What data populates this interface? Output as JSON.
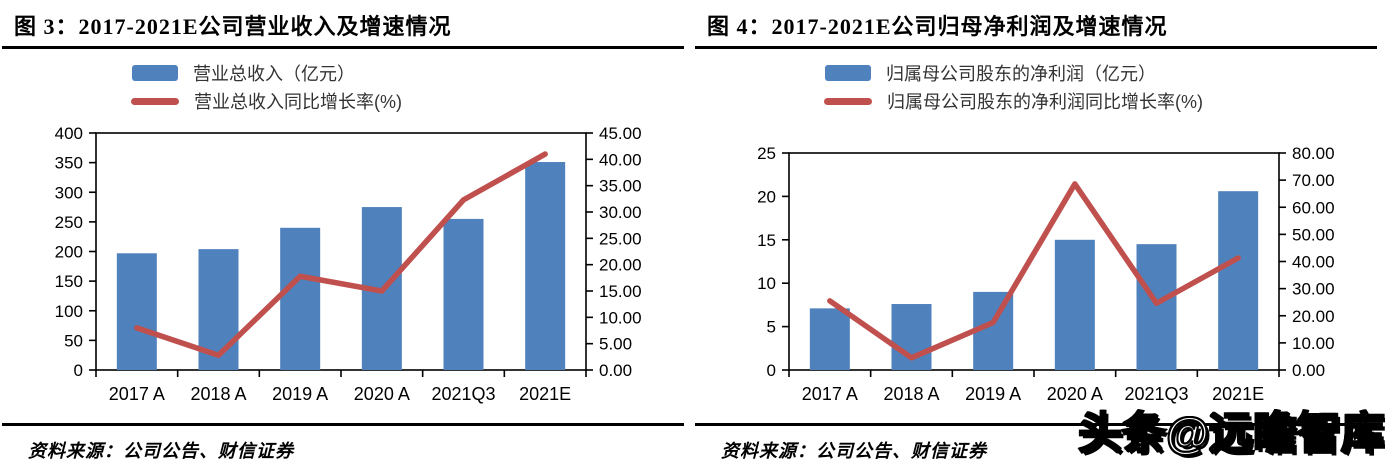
{
  "page": {
    "watermark": "头条@远瞻智库"
  },
  "panels": [
    {
      "title": "图 3：2017-2021E公司营业收入及增速情况",
      "legend": [
        {
          "label": "营业总收入（亿元）",
          "type": "bar",
          "color": "#4F81BD"
        },
        {
          "label": "营业总收入同比增长率(%)",
          "type": "line",
          "color": "#C0504D"
        }
      ],
      "source": "资料来源：公司公告、财信证券"
    },
    {
      "title": "图 4：2017-2021E公司归母净利润及增速情况",
      "legend": [
        {
          "label": "归属母公司股东的净利润（亿元）",
          "type": "bar",
          "color": "#4F81BD"
        },
        {
          "label": "归属母公司股东的净利润同比增长率(%)",
          "type": "line",
          "color": "#C0504D"
        }
      ],
      "source": "资料来源：公司公告、财信证券"
    }
  ],
  "chart_data": [
    {
      "type": "bar",
      "title": "图 3：2017-2021E公司营业收入及增速情况",
      "categories": [
        "2017 A",
        "2018 A",
        "2019 A",
        "2020 A",
        "2021Q3",
        "2021E"
      ],
      "series": [
        {
          "name": "营业总收入（亿元）",
          "type": "bar",
          "axis": "left",
          "color": "#4F81BD",
          "values": [
            197,
            204,
            240,
            275,
            255,
            351
          ]
        },
        {
          "name": "营业总收入同比增长率(%)",
          "type": "line",
          "axis": "right",
          "color": "#C0504D",
          "values": [
            8.0,
            2.8,
            17.8,
            15.0,
            32.3,
            41.0
          ]
        }
      ],
      "left_axis": {
        "min": 0,
        "max": 400,
        "step": 50,
        "tick_labels": [
          "0",
          "50",
          "100",
          "150",
          "200",
          "250",
          "300",
          "350",
          "400"
        ]
      },
      "right_axis": {
        "min": 0,
        "max": 45,
        "step": 5,
        "tick_labels": [
          "0.00",
          "5.00",
          "10.00",
          "15.00",
          "20.00",
          "25.00",
          "30.00",
          "35.00",
          "40.00",
          "45.00"
        ]
      },
      "grid": false,
      "legend_position": "top"
    },
    {
      "type": "bar",
      "title": "图 4：2017-2021E公司归母净利润及增速情况",
      "categories": [
        "2017 A",
        "2018 A",
        "2019 A",
        "2020 A",
        "2021Q3",
        "2021E"
      ],
      "series": [
        {
          "name": "归属母公司股东的净利润（亿元）",
          "type": "bar",
          "axis": "left",
          "color": "#4F81BD",
          "values": [
            7.1,
            7.6,
            9.0,
            15.0,
            14.5,
            20.6
          ]
        },
        {
          "name": "归属母公司股东的净利润同比增长率(%)",
          "type": "line",
          "axis": "right",
          "color": "#C0504D",
          "values": [
            25.5,
            4.5,
            17.5,
            68.6,
            24.6,
            41.3
          ]
        }
      ],
      "left_axis": {
        "min": 0,
        "max": 25,
        "step": 5,
        "tick_labels": [
          "0",
          "5",
          "10",
          "15",
          "20",
          "25"
        ]
      },
      "right_axis": {
        "min": 0,
        "max": 80,
        "step": 10,
        "tick_labels": [
          "0.00",
          "10.00",
          "20.00",
          "30.00",
          "40.00",
          "50.00",
          "60.00",
          "70.00",
          "80.00"
        ]
      },
      "grid": false,
      "legend_position": "top"
    }
  ]
}
